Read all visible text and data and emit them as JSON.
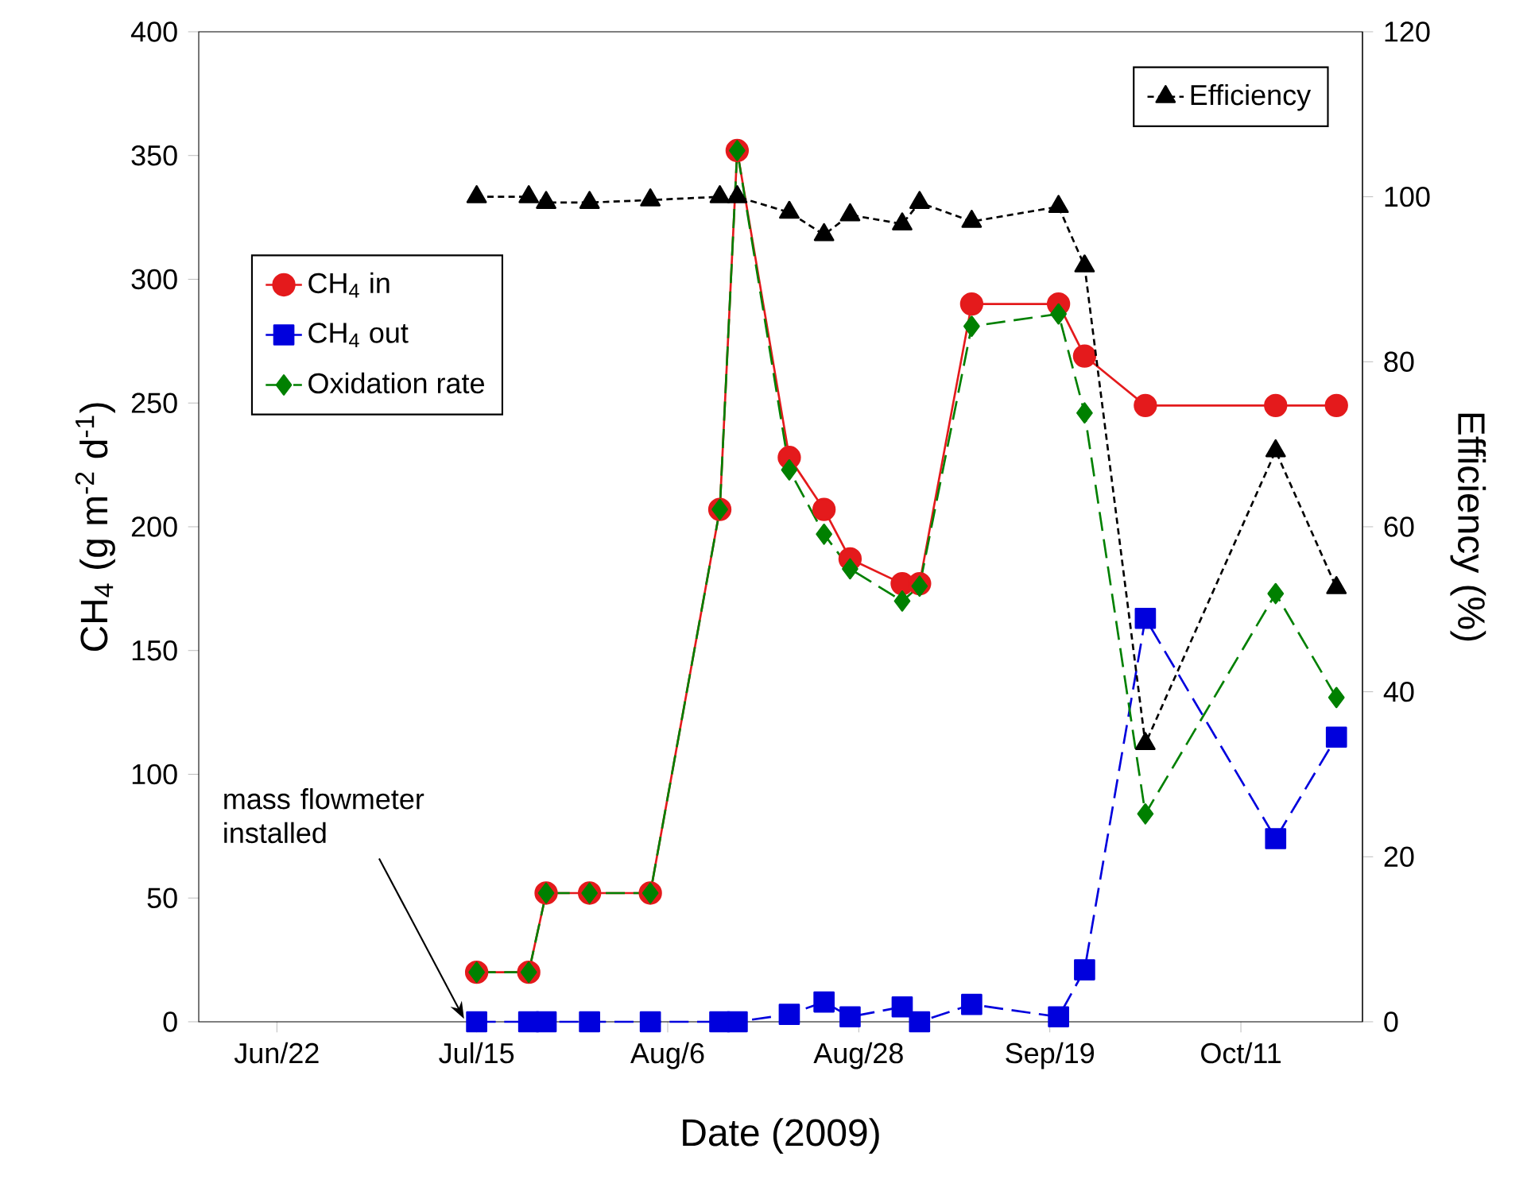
{
  "chart_data": {
    "type": "line",
    "xlabel": "Date (2009)",
    "ylabel": "CH$_{4}$ (g m$^{-2}$ d$^{-1}$)",
    "y2label": "Efficiency (%)",
    "x": [
      "2009-07-15",
      "2009-07-21",
      "2009-07-23",
      "2009-07-28",
      "2009-08-04",
      "2009-08-12",
      "2009-08-14",
      "2009-08-20",
      "2009-08-24",
      "2009-08-27",
      "2009-09-02",
      "2009-09-04",
      "2009-09-10",
      "2009-09-20",
      "2009-09-23",
      "2009-09-30",
      "2009-10-15",
      "2009-10-22"
    ],
    "xlim": [
      "2009-06-13",
      "2009-10-25"
    ],
    "xticks": [
      {
        "value": "2009-06-22",
        "label": "Jun/22"
      },
      {
        "value": "2009-07-15",
        "label": "Jul/15"
      },
      {
        "value": "2009-08-06",
        "label": "Aug/6"
      },
      {
        "value": "2009-08-28",
        "label": "Aug/28"
      },
      {
        "value": "2009-09-19",
        "label": "Sep/19"
      },
      {
        "value": "2009-10-11",
        "label": "Oct/11"
      }
    ],
    "ylim": [
      0,
      400
    ],
    "yticks": [
      0,
      50,
      100,
      150,
      200,
      250,
      300,
      350,
      400
    ],
    "y2lim": [
      0,
      120
    ],
    "y2ticks": [
      0,
      20,
      40,
      60,
      80,
      100,
      120
    ],
    "series": [
      {
        "name": "CH$_{4}$ in",
        "color": "#e41a1c",
        "marker": "circle",
        "line_style": "solid",
        "values": [
          20,
          20,
          52,
          52,
          52,
          207,
          352,
          228,
          207,
          187,
          177,
          177,
          290,
          290,
          269,
          249,
          249,
          249
        ]
      },
      {
        "name": "CH$_{4}$ out",
        "color": "#0000dd",
        "marker": "square",
        "line_style": "dashed",
        "values": [
          0,
          0,
          0,
          0,
          0,
          0,
          0,
          3,
          8,
          2,
          6,
          0,
          7,
          2,
          21,
          163,
          74,
          115
        ]
      },
      {
        "name": "Oxidation rate",
        "color": "#008000",
        "marker": "diamond",
        "line_style": "dashed",
        "values": [
          20,
          20,
          52,
          52,
          52,
          207,
          352,
          223,
          197,
          183,
          170,
          176,
          281,
          286,
          246,
          84,
          173,
          131
        ]
      },
      {
        "name": "Efficiency",
        "color": "#000000",
        "marker": "triangle",
        "line_style": "dotted",
        "axis": "y2",
        "values": [
          100,
          100,
          99.3,
          99.3,
          99.6,
          100,
          100,
          98.1,
          95.4,
          97.8,
          96.7,
          99.3,
          97,
          98.8,
          91.6,
          33.7,
          69.2,
          52.6
        ]
      }
    ],
    "legend": "left",
    "grid": false,
    "annotations": [
      "mass flowmeter installed"
    ]
  }
}
